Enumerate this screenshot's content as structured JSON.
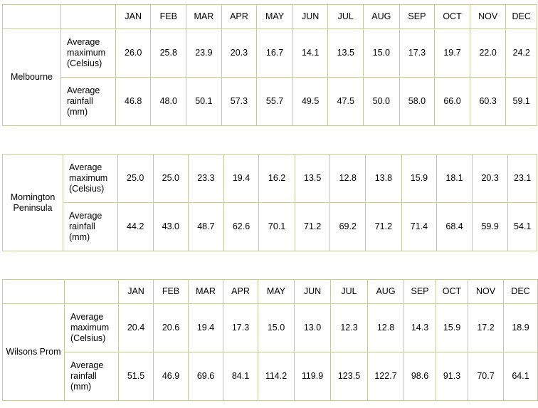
{
  "months": [
    "JAN",
    "FEB",
    "MAR",
    "APR",
    "MAY",
    "JUN",
    "JUL",
    "AUG",
    "SEP",
    "OCT",
    "NOV",
    "DEC"
  ],
  "tables": [
    {
      "location": "Melbourne",
      "show_header": true,
      "rows": [
        {
          "label": "Average maximum (Celsius)",
          "values": [
            "26.0",
            "25.8",
            "23.9",
            "20.3",
            "16.7",
            "14.1",
            "13.5",
            "15.0",
            "17.3",
            "19.7",
            "22.0",
            "24.2"
          ]
        },
        {
          "label": "Average rainfall (mm)",
          "values": [
            "46.8",
            "48.0",
            "50.1",
            "57.3",
            "55.7",
            "49.5",
            "47.5",
            "50.0",
            "58.0",
            "66.0",
            "60.3",
            "59.1"
          ]
        }
      ]
    },
    {
      "location": "Mornington Peninsula",
      "show_header": false,
      "rows": [
        {
          "label": "Average maximum (Celsius)",
          "values": [
            "25.0",
            "25.0",
            "23.3",
            "19.4",
            "16.2",
            "13.5",
            "12.8",
            "13.8",
            "15.9",
            "18.1",
            "20.3",
            "23.1"
          ]
        },
        {
          "label": "Average rainfall (mm)",
          "values": [
            "44.2",
            "43.0",
            "48.7",
            "62.6",
            "70.1",
            "71.2",
            "69.2",
            "71.2",
            "71.4",
            "68.4",
            "59.9",
            "54.1"
          ]
        }
      ]
    },
    {
      "location": "Wilsons Prom",
      "show_header": true,
      "rows": [
        {
          "label": "Average maximum (Celsius)",
          "values": [
            "20.4",
            "20.6",
            "19.4",
            "17.3",
            "15.0",
            "13.0",
            "12.3",
            "12.8",
            "14.3",
            "15.9",
            "17.2",
            "18.9"
          ]
        },
        {
          "label": "Average rainfall (mm)",
          "values": [
            "51.5",
            "46.9",
            "69.6",
            "84.1",
            "114.2",
            "119.9",
            "123.5",
            "122.7",
            "98.6",
            "91.3",
            "70.7",
            "64.1"
          ]
        }
      ]
    }
  ]
}
